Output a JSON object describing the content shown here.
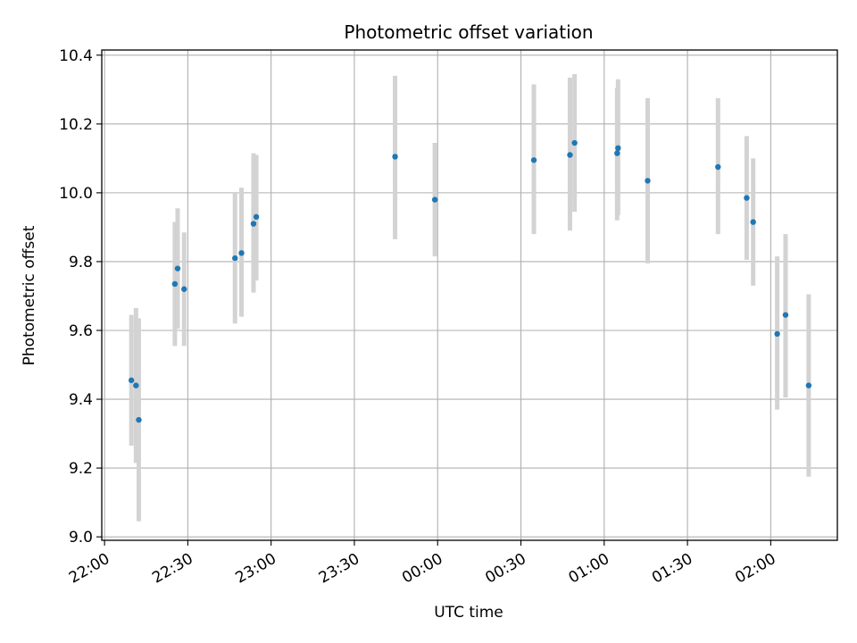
{
  "chart_data": {
    "type": "scatter",
    "title": "Photometric offset variation",
    "xlabel": "UTC time",
    "ylabel": "Photometric offset",
    "xlim": [
      "2000-01-01T21:59:00",
      "2000-01-02T02:24:00"
    ],
    "ylim": [
      8.99,
      10.415
    ],
    "xticks": [
      {
        "t": "2000-01-01T22:00:00",
        "label": "22:00"
      },
      {
        "t": "2000-01-01T22:30:00",
        "label": "22:30"
      },
      {
        "t": "2000-01-01T23:00:00",
        "label": "23:00"
      },
      {
        "t": "2000-01-01T23:30:00",
        "label": "23:30"
      },
      {
        "t": "2000-01-02T00:00:00",
        "label": "00:00"
      },
      {
        "t": "2000-01-02T00:30:00",
        "label": "00:30"
      },
      {
        "t": "2000-01-02T01:00:00",
        "label": "01:00"
      },
      {
        "t": "2000-01-02T01:30:00",
        "label": "01:30"
      },
      {
        "t": "2000-01-02T02:00:00",
        "label": "02:00"
      }
    ],
    "yticks": [
      {
        "v": 9.0,
        "label": "9.0"
      },
      {
        "v": 9.2,
        "label": "9.2"
      },
      {
        "v": 9.4,
        "label": "9.4"
      },
      {
        "v": 9.6,
        "label": "9.6"
      },
      {
        "v": 9.8,
        "label": "9.8"
      },
      {
        "v": 10.0,
        "label": "10.0"
      },
      {
        "v": 10.2,
        "label": "10.2"
      },
      {
        "v": 10.4,
        "label": "10.4"
      }
    ],
    "grid": true,
    "marker_color": "#1f77b4",
    "errorbar_color": "#d3d3d3",
    "points": [
      {
        "t": "2000-01-01T22:09:40",
        "y": 9.455,
        "ylow": 9.265,
        "yhigh": 9.645
      },
      {
        "t": "2000-01-01T22:11:20",
        "y": 9.44,
        "ylow": 9.215,
        "yhigh": 9.665
      },
      {
        "t": "2000-01-01T22:12:20",
        "y": 9.34,
        "ylow": 9.045,
        "yhigh": 9.635
      },
      {
        "t": "2000-01-01T22:25:20",
        "y": 9.735,
        "ylow": 9.555,
        "yhigh": 9.915
      },
      {
        "t": "2000-01-01T22:26:20",
        "y": 9.78,
        "ylow": 9.605,
        "yhigh": 9.955
      },
      {
        "t": "2000-01-01T22:28:40",
        "y": 9.72,
        "ylow": 9.555,
        "yhigh": 9.885
      },
      {
        "t": "2000-01-01T22:47:00",
        "y": 9.81,
        "ylow": 9.62,
        "yhigh": 10.0
      },
      {
        "t": "2000-01-01T22:49:20",
        "y": 9.825,
        "ylow": 9.64,
        "yhigh": 10.015
      },
      {
        "t": "2000-01-01T22:53:40",
        "y": 9.91,
        "ylow": 9.71,
        "yhigh": 10.115
      },
      {
        "t": "2000-01-01T22:54:40",
        "y": 9.93,
        "ylow": 9.745,
        "yhigh": 10.11
      },
      {
        "t": "2000-01-01T23:44:40",
        "y": 10.105,
        "ylow": 9.865,
        "yhigh": 10.34
      },
      {
        "t": "2000-01-01T23:59:00",
        "y": 9.98,
        "ylow": 9.815,
        "yhigh": 10.145
      },
      {
        "t": "2000-01-02T00:34:40",
        "y": 10.095,
        "ylow": 9.88,
        "yhigh": 10.315
      },
      {
        "t": "2000-01-02T00:47:40",
        "y": 10.11,
        "ylow": 9.89,
        "yhigh": 10.335
      },
      {
        "t": "2000-01-02T00:49:20",
        "y": 10.145,
        "ylow": 9.945,
        "yhigh": 10.345
      },
      {
        "t": "2000-01-02T01:04:40",
        "y": 10.115,
        "ylow": 9.92,
        "yhigh": 10.305
      },
      {
        "t": "2000-01-02T01:05:00",
        "y": 10.13,
        "ylow": 9.935,
        "yhigh": 10.33
      },
      {
        "t": "2000-01-02T01:15:40",
        "y": 10.035,
        "ylow": 9.795,
        "yhigh": 10.275
      },
      {
        "t": "2000-01-02T01:41:00",
        "y": 10.075,
        "ylow": 9.88,
        "yhigh": 10.275
      },
      {
        "t": "2000-01-02T01:51:20",
        "y": 9.985,
        "ylow": 9.805,
        "yhigh": 10.165
      },
      {
        "t": "2000-01-02T01:53:40",
        "y": 9.915,
        "ylow": 9.73,
        "yhigh": 10.1
      },
      {
        "t": "2000-01-02T02:02:20",
        "y": 9.59,
        "ylow": 9.37,
        "yhigh": 9.815
      },
      {
        "t": "2000-01-02T02:05:20",
        "y": 9.645,
        "ylow": 9.405,
        "yhigh": 9.88
      },
      {
        "t": "2000-01-02T02:13:40",
        "y": 9.44,
        "ylow": 9.175,
        "yhigh": 9.705
      }
    ]
  }
}
